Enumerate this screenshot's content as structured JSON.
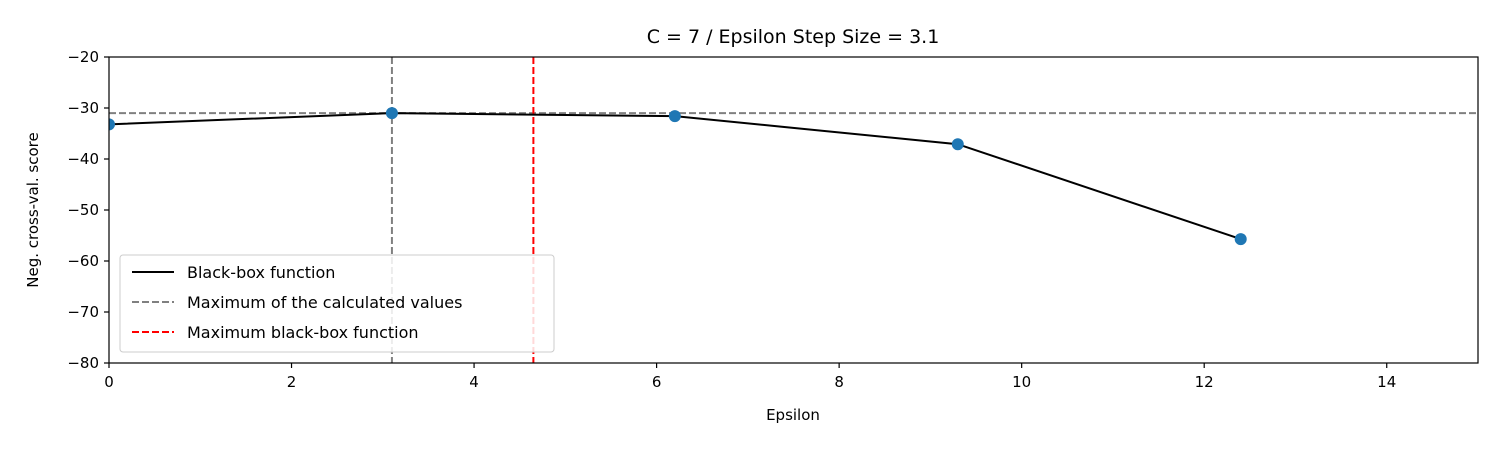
{
  "chart_data": {
    "type": "line",
    "title": "C = 7 / Epsilon Step Size = 3.1",
    "xlabel": "Epsilon",
    "ylabel": "Neg. cross-val. score",
    "xlim": [
      0,
      15
    ],
    "ylim": [
      -80,
      -20
    ],
    "xticks": [
      0,
      2,
      4,
      6,
      8,
      10,
      12,
      14
    ],
    "yticks": [
      -80,
      -70,
      -60,
      -50,
      -40,
      -30,
      -20
    ],
    "grid": false,
    "legend_position": "lower-left",
    "series": [
      {
        "name": "Black-box function",
        "style": "solid",
        "color": "#000000",
        "x": [
          0.0,
          3.1,
          6.2,
          9.3,
          12.4
        ],
        "y": [
          -33.2,
          -31.0,
          -31.6,
          -37.1,
          -55.7
        ]
      }
    ],
    "points": {
      "color": "#1f77b4",
      "x": [
        0.0,
        3.1,
        6.2,
        9.3,
        12.4
      ],
      "y": [
        -33.2,
        -31.0,
        -31.6,
        -37.1,
        -55.7
      ]
    },
    "reference_lines": [
      {
        "name": "Maximum of the calculated values",
        "orientation": "horizontal",
        "value": -31.0,
        "color": "#808080",
        "style": "dashed"
      },
      {
        "name": "",
        "orientation": "vertical",
        "value": 3.1,
        "color": "#808080",
        "style": "dashed"
      },
      {
        "name": "Maximum black-box function",
        "orientation": "vertical",
        "value": 4.65,
        "color": "#ff0000",
        "style": "dashed"
      }
    ],
    "legend": [
      {
        "label": "Black-box function",
        "color": "#000000",
        "style": "solid"
      },
      {
        "label": "Maximum of the calculated values",
        "color": "#808080",
        "style": "dashed"
      },
      {
        "label": "Maximum black-box function",
        "color": "#ff0000",
        "style": "dashed"
      }
    ]
  }
}
